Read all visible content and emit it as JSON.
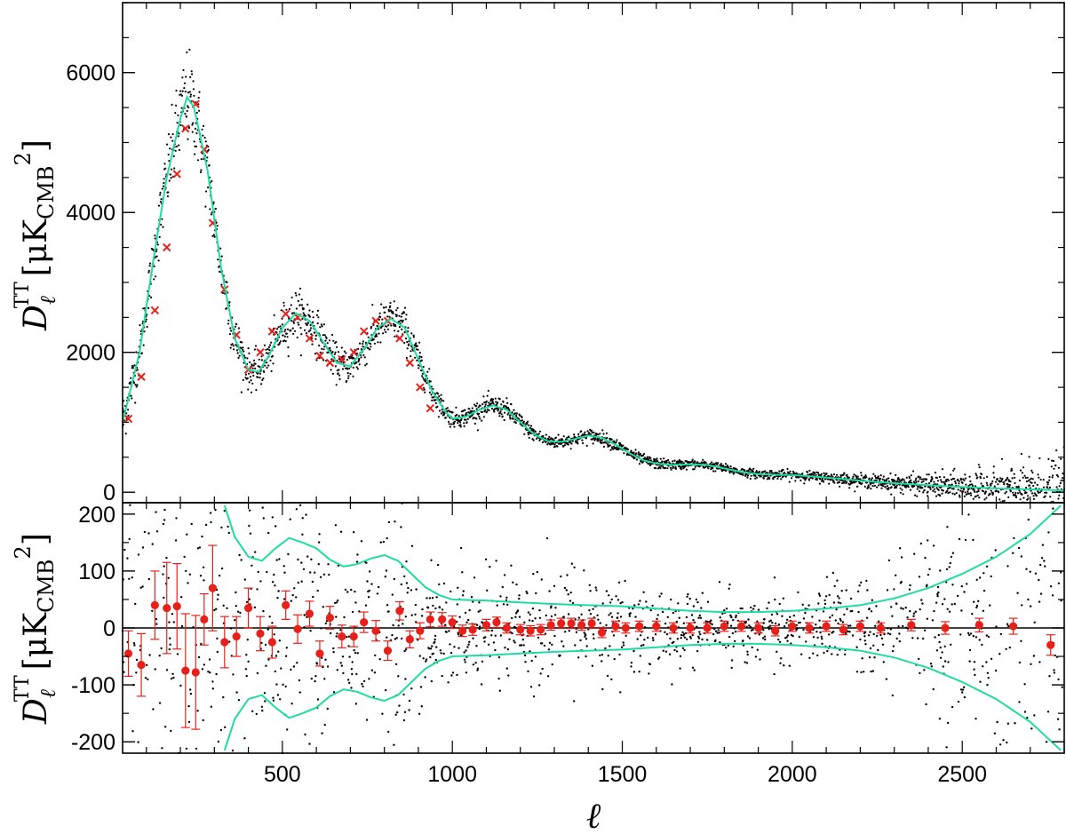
{
  "chart_data": [
    {
      "type": "scatter",
      "panel": "top",
      "ylabel_main": "D",
      "ylabel_sub": "ℓ",
      "ylabel_sup": "TT",
      "ylabel_unit": "μK",
      "ylabel_unit_sub": "CMB",
      "ylabel_unit_sup": "2",
      "xlim": [
        30,
        2800
      ],
      "ylim": [
        -150,
        7000
      ],
      "yticks": [
        0,
        2000,
        4000,
        6000
      ],
      "ytick_labels": [
        "0",
        "2000",
        "4000",
        "6000"
      ],
      "grid": false,
      "series": [
        {
          "kind": "best-fit model curve",
          "color": "#1fdca4",
          "x": [
            30,
            80,
            120,
            160,
            200,
            220,
            240,
            280,
            320,
            360,
            400,
            430,
            460,
            500,
            540,
            580,
            620,
            660,
            700,
            740,
            780,
            820,
            860,
            900,
            940,
            980,
            1000,
            1040,
            1080,
            1120,
            1160,
            1200,
            1240,
            1280,
            1320,
            1360,
            1400,
            1440,
            1480,
            1520,
            1560,
            1600,
            1650,
            1700,
            1750,
            1800,
            1850,
            1900,
            1950,
            2000,
            2050,
            2100,
            2150,
            2200,
            2300,
            2400,
            2500,
            2600,
            2700,
            2800
          ],
          "y": [
            1000,
            2000,
            3300,
            4500,
            5350,
            5650,
            5500,
            4600,
            3200,
            2200,
            1750,
            1720,
            1950,
            2350,
            2560,
            2450,
            2150,
            1850,
            1800,
            2050,
            2350,
            2480,
            2350,
            1900,
            1450,
            1150,
            1050,
            1080,
            1180,
            1240,
            1180,
            1000,
            830,
            730,
            720,
            760,
            810,
            780,
            680,
            560,
            460,
            410,
            390,
            400,
            390,
            340,
            290,
            260,
            250,
            245,
            230,
            210,
            190,
            165,
            130,
            100,
            75,
            55,
            40,
            25
          ]
        },
        {
          "kind": "binned data (x markers)",
          "color": "#e8201a",
          "x": [
            47,
            85,
            125,
            160,
            190,
            215,
            245,
            270,
            295,
            330,
            365,
            400,
            435,
            470,
            510,
            545,
            580,
            610,
            640,
            675,
            710,
            740,
            775,
            810,
            845,
            875,
            905,
            935
          ],
          "y": [
            1050,
            1650,
            2600,
            3500,
            4550,
            5200,
            5550,
            4900,
            3850,
            2900,
            2250,
            1750,
            2000,
            2300,
            2550,
            2500,
            2200,
            1950,
            1850,
            1900,
            2000,
            2300,
            2450,
            2450,
            2200,
            1850,
            1500,
            1200
          ]
        },
        {
          "kind": "individual multipoles (black dots)",
          "color": "#000000",
          "count_note": ""
        }
      ]
    },
    {
      "type": "scatter",
      "panel": "bottom",
      "xlabel": "ℓ",
      "ylabel_main": "D",
      "ylabel_sub": "ℓ",
      "ylabel_sup": "TT",
      "ylabel_unit": "μK",
      "ylabel_unit_sub": "CMB",
      "ylabel_unit_sup": "2",
      "xlim": [
        30,
        2800
      ],
      "ylim": [
        -220,
        220
      ],
      "xticks": [
        500,
        1000,
        1500,
        2000,
        2500
      ],
      "xtick_labels": [
        "500",
        "1000",
        "1500",
        "2000",
        "2500"
      ],
      "yticks": [
        -200,
        -100,
        0,
        100,
        200
      ],
      "ytick_labels": [
        "-200",
        "-100",
        "0",
        "100",
        "200"
      ],
      "grid": false,
      "series": [
        {
          "kind": "residual envelope upper",
          "color": "#1fdca4",
          "x": [
            330,
            360,
            400,
            440,
            480,
            520,
            560,
            600,
            640,
            680,
            720,
            760,
            800,
            840,
            880,
            920,
            960,
            1000,
            1100,
            1200,
            1300,
            1400,
            1500,
            1600,
            1700,
            1800,
            1900,
            2000,
            2100,
            2200,
            2300,
            2400,
            2500,
            2600,
            2700,
            2790
          ],
          "y": [
            215,
            160,
            125,
            118,
            140,
            158,
            150,
            140,
            120,
            108,
            112,
            122,
            128,
            118,
            95,
            72,
            58,
            50,
            48,
            45,
            42,
            40,
            38,
            34,
            30,
            28,
            28,
            30,
            34,
            40,
            52,
            70,
            95,
            125,
            165,
            215
          ]
        },
        {
          "kind": "residual envelope lower",
          "color": "#1fdca4",
          "x": [
            330,
            360,
            400,
            440,
            480,
            520,
            560,
            600,
            640,
            680,
            720,
            760,
            800,
            840,
            880,
            920,
            960,
            1000,
            1100,
            1200,
            1300,
            1400,
            1500,
            1600,
            1700,
            1800,
            1900,
            2000,
            2100,
            2200,
            2300,
            2400,
            2500,
            2600,
            2700,
            2790
          ],
          "y": [
            -215,
            -160,
            -125,
            -118,
            -140,
            -158,
            -150,
            -140,
            -120,
            -108,
            -112,
            -122,
            -128,
            -118,
            -95,
            -72,
            -58,
            -50,
            -48,
            -45,
            -42,
            -40,
            -38,
            -34,
            -30,
            -28,
            -28,
            -30,
            -34,
            -40,
            -52,
            -70,
            -95,
            -125,
            -165,
            -215
          ]
        },
        {
          "kind": "binned residuals (red dots with error bars)",
          "color": "#e8201a",
          "x": [
            47,
            85,
            125,
            160,
            190,
            215,
            245,
            270,
            295,
            330,
            365,
            400,
            435,
            470,
            510,
            545,
            580,
            610,
            640,
            675,
            710,
            740,
            775,
            810,
            845,
            875,
            905,
            935,
            970,
            1000,
            1030,
            1060,
            1100,
            1130,
            1160,
            1200,
            1230,
            1260,
            1290,
            1320,
            1350,
            1380,
            1410,
            1440,
            1480,
            1510,
            1550,
            1600,
            1650,
            1700,
            1750,
            1800,
            1850,
            1900,
            1950,
            2000,
            2050,
            2100,
            2150,
            2200,
            2260,
            2350,
            2450,
            2550,
            2650,
            2760
          ],
          "y": [
            -45,
            -65,
            40,
            35,
            38,
            -75,
            -78,
            15,
            70,
            -25,
            -15,
            35,
            -10,
            -25,
            40,
            -2,
            25,
            -45,
            18,
            -15,
            -15,
            10,
            -5,
            -40,
            30,
            -20,
            -5,
            15,
            15,
            10,
            -5,
            -3,
            5,
            10,
            0,
            -3,
            -5,
            -3,
            5,
            8,
            8,
            5,
            8,
            -8,
            3,
            0,
            3,
            3,
            0,
            0,
            0,
            3,
            3,
            0,
            -5,
            3,
            0,
            3,
            -3,
            3,
            0,
            5,
            0,
            5,
            3,
            -30
          ],
          "err": [
            40,
            55,
            60,
            80,
            75,
            100,
            100,
            45,
            75,
            45,
            35,
            35,
            30,
            28,
            25,
            25,
            22,
            22,
            20,
            20,
            18,
            18,
            18,
            17,
            16,
            15,
            14,
            13,
            12,
            11,
            10,
            10,
            10,
            9,
            9,
            9,
            9,
            9,
            9,
            9,
            9,
            9,
            9,
            9,
            9,
            9,
            9,
            9,
            9,
            9,
            9,
            9,
            9,
            9,
            9,
            9,
            9,
            9,
            9,
            9,
            9,
            10,
            11,
            12,
            14,
            18
          ]
        },
        {
          "kind": "individual residuals (black dots)",
          "color": "#000000"
        }
      ]
    }
  ]
}
